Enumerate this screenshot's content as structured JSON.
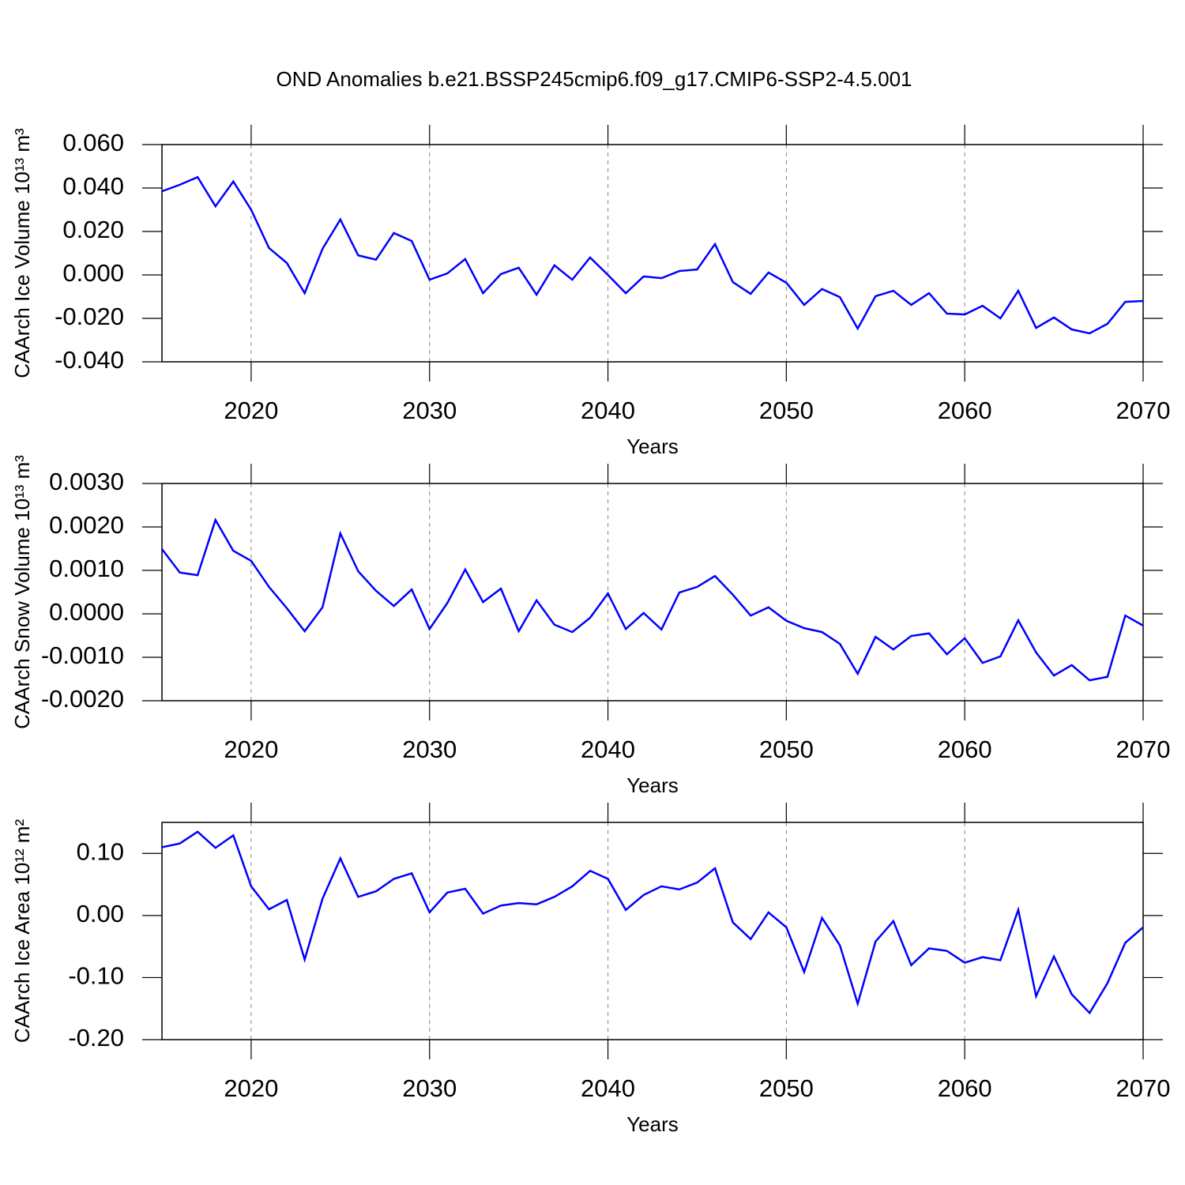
{
  "title": "OND Anomalies b.e21.BSSP245cmip6.f09_g17.CMIP6-SSP2-4.5.001",
  "chart_data": [
    {
      "type": "line",
      "ylabel": "CAArch Ice Volume 10¹³ m³",
      "xlabel": "Years",
      "color": "#0000ff",
      "grid": "x",
      "x": [
        2015,
        2016,
        2017,
        2018,
        2019,
        2020,
        2021,
        2022,
        2023,
        2024,
        2025,
        2026,
        2027,
        2028,
        2029,
        2030,
        2031,
        2032,
        2033,
        2034,
        2035,
        2036,
        2037,
        2038,
        2039,
        2040,
        2041,
        2042,
        2043,
        2044,
        2045,
        2046,
        2047,
        2048,
        2049,
        2050,
        2051,
        2052,
        2053,
        2054,
        2055,
        2056,
        2057,
        2058,
        2059,
        2060,
        2061,
        2062,
        2063,
        2064,
        2065,
        2066,
        2067,
        2068,
        2069,
        2070
      ],
      "values": [
        0.0385,
        0.0415,
        0.045,
        0.0316,
        0.043,
        0.03,
        0.0124,
        0.0055,
        -0.0084,
        0.012,
        0.0255,
        0.009,
        0.007,
        0.0193,
        0.0156,
        -0.0022,
        0.0007,
        0.0073,
        -0.0084,
        0.0004,
        0.0033,
        -0.0091,
        0.0044,
        -0.0022,
        0.008,
        0.0,
        -0.0084,
        -0.0007,
        -0.0015,
        0.0018,
        0.0025,
        0.0142,
        -0.0033,
        -0.0087,
        0.0011,
        -0.0036,
        -0.0138,
        -0.0065,
        -0.0102,
        -0.0247,
        -0.0098,
        -0.0073,
        -0.0138,
        -0.0084,
        -0.0178,
        -0.0182,
        -0.0142,
        -0.02,
        -0.0073,
        -0.0244,
        -0.0196,
        -0.0251,
        -0.0269,
        -0.0225,
        -0.0124,
        -0.012
      ],
      "xlim": [
        2015,
        2070
      ],
      "xticks": [
        2020,
        2030,
        2040,
        2050,
        2060,
        2070
      ],
      "ylim": [
        -0.04,
        0.06
      ],
      "yticks": [
        {
          "value": -0.04,
          "label": "-0.040"
        },
        {
          "value": -0.02,
          "label": "-0.020"
        },
        {
          "value": 0,
          "label": "0.000"
        },
        {
          "value": 0.02,
          "label": "0.020"
        },
        {
          "value": 0.04,
          "label": "0.040"
        },
        {
          "value": 0.06,
          "label": "0.060"
        }
      ]
    },
    {
      "type": "line",
      "ylabel": "CAArch Snow Volume 10¹³ m³",
      "xlabel": "Years",
      "color": "#0000ff",
      "grid": "x",
      "x": [
        2015,
        2016,
        2017,
        2018,
        2019,
        2020,
        2021,
        2022,
        2023,
        2024,
        2025,
        2026,
        2027,
        2028,
        2029,
        2030,
        2031,
        2032,
        2033,
        2034,
        2035,
        2036,
        2037,
        2038,
        2039,
        2040,
        2041,
        2042,
        2043,
        2044,
        2045,
        2046,
        2047,
        2048,
        2049,
        2050,
        2051,
        2052,
        2053,
        2054,
        2055,
        2056,
        2057,
        2058,
        2059,
        2060,
        2061,
        2062,
        2063,
        2064,
        2065,
        2066,
        2067,
        2068,
        2069,
        2070
      ],
      "values": [
        0.00149,
        0.00095,
        0.00089,
        0.00216,
        0.00145,
        0.00122,
        0.00062,
        0.00013,
        -0.0004,
        0.00015,
        0.00185,
        0.00098,
        0.00053,
        0.00018,
        0.00056,
        -0.00035,
        0.00025,
        0.00102,
        0.00027,
        0.00058,
        -0.0004,
        0.00031,
        -0.00025,
        -0.00042,
        -9e-05,
        0.00047,
        -0.00035,
        2e-05,
        -0.00036,
        0.00049,
        0.00062,
        0.00087,
        0.00044,
        -4e-05,
        0.00015,
        -0.00016,
        -0.00033,
        -0.00042,
        -0.00069,
        -0.00138,
        -0.00053,
        -0.00082,
        -0.00051,
        -0.00045,
        -0.00093,
        -0.00056,
        -0.00113,
        -0.00098,
        -0.00015,
        -0.00089,
        -0.00142,
        -0.00118,
        -0.00153,
        -0.00145,
        -4e-05,
        -0.00027
      ],
      "xlim": [
        2015,
        2070
      ],
      "xticks": [
        2020,
        2030,
        2040,
        2050,
        2060,
        2070
      ],
      "ylim": [
        -0.002,
        0.003
      ],
      "yticks": [
        {
          "value": -0.002,
          "label": "-0.0020"
        },
        {
          "value": -0.001,
          "label": "-0.0010"
        },
        {
          "value": 0,
          "label": "0.0000"
        },
        {
          "value": 0.001,
          "label": "0.0010"
        },
        {
          "value": 0.002,
          "label": "0.0020"
        },
        {
          "value": 0.003,
          "label": "0.0030"
        }
      ]
    },
    {
      "type": "line",
      "ylabel": "CAArch Ice Area 10¹² m²",
      "xlabel": "Years",
      "color": "#0000ff",
      "grid": "x",
      "x": [
        2015,
        2016,
        2017,
        2018,
        2019,
        2020,
        2021,
        2022,
        2023,
        2024,
        2025,
        2026,
        2027,
        2028,
        2029,
        2030,
        2031,
        2032,
        2033,
        2034,
        2035,
        2036,
        2037,
        2038,
        2039,
        2040,
        2041,
        2042,
        2043,
        2044,
        2045,
        2046,
        2047,
        2048,
        2049,
        2050,
        2051,
        2052,
        2053,
        2054,
        2055,
        2056,
        2057,
        2058,
        2059,
        2060,
        2061,
        2062,
        2063,
        2064,
        2065,
        2066,
        2067,
        2068,
        2069,
        2070
      ],
      "values": [
        0.11,
        0.116,
        0.135,
        0.109,
        0.129,
        0.047,
        0.01,
        0.025,
        -0.071,
        0.027,
        0.092,
        0.03,
        0.039,
        0.059,
        0.068,
        0.005,
        0.037,
        0.043,
        0.003,
        0.016,
        0.02,
        0.018,
        0.03,
        0.047,
        0.072,
        0.059,
        0.009,
        0.033,
        0.047,
        0.042,
        0.053,
        0.076,
        -0.011,
        -0.038,
        0.005,
        -0.019,
        -0.091,
        -0.004,
        -0.048,
        -0.142,
        -0.042,
        -0.009,
        -0.08,
        -0.053,
        -0.057,
        -0.076,
        -0.067,
        -0.072,
        0.009,
        -0.13,
        -0.066,
        -0.127,
        -0.157,
        -0.109,
        -0.044,
        -0.019
      ],
      "xlim": [
        2015,
        2070
      ],
      "xticks": [
        2020,
        2030,
        2040,
        2050,
        2060,
        2070
      ],
      "ylim": [
        -0.2,
        0.15
      ],
      "yticks": [
        {
          "value": -0.2,
          "label": "-0.20"
        },
        {
          "value": -0.1,
          "label": "-0.10"
        },
        {
          "value": 0,
          "label": "0.00"
        },
        {
          "value": 0.1,
          "label": "0.10"
        }
      ]
    }
  ]
}
